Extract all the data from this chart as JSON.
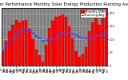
{
  "title": "Solar PV/Inverter Performance Monthly Solar Energy Production Running Average",
  "bar_color": "#FF0000",
  "line_color": "#4444FF",
  "background_color": "#FFFFFF",
  "grid_color": "#FFFFFF",
  "plot_bg": "#808080",
  "months": [
    "Jan\n'05",
    "Feb\n'05",
    "Mar\n'05",
    "Apr\n'05",
    "May\n'05",
    "Jun\n'05",
    "Jul\n'05",
    "Aug\n'05",
    "Sep\n'05",
    "Oct\n'05",
    "Nov\n'05",
    "Dec\n'05",
    "Jan\n'06",
    "Feb\n'06",
    "Mar\n'06",
    "Apr\n'06",
    "May\n'06",
    "Jun\n'06",
    "Jul\n'06",
    "Aug\n'06",
    "Sep\n'06",
    "Oct\n'06",
    "Nov\n'06",
    "Dec\n'06",
    "Jan\n'07",
    "Feb\n'07",
    "Mar\n'07",
    "Apr\n'07",
    "May\n'07",
    "Jun\n'07",
    "Jul\n'07",
    "Aug\n'07"
  ],
  "values": [
    55,
    95,
    130,
    155,
    175,
    165,
    170,
    175,
    140,
    100,
    60,
    40,
    15,
    80,
    145,
    170,
    185,
    190,
    195,
    185,
    150,
    105,
    55,
    35,
    45,
    70,
    130,
    165,
    180,
    155,
    185,
    215
  ],
  "running_avg": [
    55,
    75,
    93,
    109,
    122,
    130,
    135,
    131,
    133,
    125,
    113,
    107,
    95,
    97,
    99,
    102,
    110,
    118,
    123,
    123,
    123,
    121,
    116,
    111,
    107,
    105,
    107,
    109,
    114,
    115,
    120,
    126
  ],
  "ylim": [
    0,
    220
  ],
  "yticks": [
    0,
    50,
    100,
    150,
    200
  ],
  "legend_labels": [
    "Monthly kWh",
    "Running Avg"
  ],
  "title_fontsize": 3.8,
  "tick_fontsize": 2.5,
  "legend_fontsize": 2.8
}
